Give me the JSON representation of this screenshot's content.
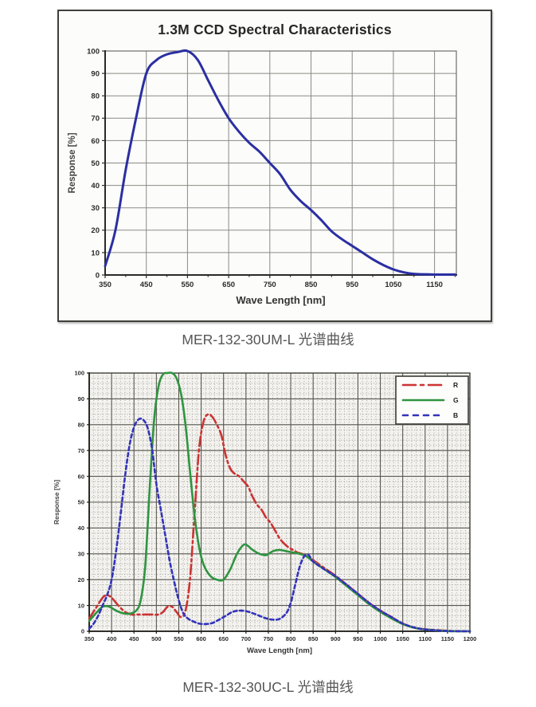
{
  "page": {
    "background": "#ffffff"
  },
  "chart_data": [
    {
      "type": "line",
      "title": "1.3M CCD Spectral Characteristics",
      "xlabel": "Wave Length [nm]",
      "ylabel": "Response [%]",
      "caption": "MER-132-30UM-L 光谱曲线",
      "xlim": [
        350,
        1203
      ],
      "ylim": [
        0,
        100
      ],
      "x_ticks": [
        350,
        450,
        550,
        650,
        750,
        850,
        950,
        1050,
        1150
      ],
      "y_ticks": [
        0,
        10,
        20,
        30,
        40,
        50,
        60,
        70,
        80,
        90,
        100
      ],
      "x_minor_tick_step": 50,
      "grid": "major",
      "legend": null,
      "series": [
        {
          "name": "CCD spectral response",
          "color": "#2b2fa2",
          "line_style": "solid",
          "x": [
            350,
            375,
            400,
            425,
            450,
            475,
            500,
            525,
            550,
            575,
            600,
            625,
            650,
            675,
            700,
            725,
            750,
            775,
            800,
            825,
            850,
            875,
            900,
            925,
            950,
            975,
            1000,
            1025,
            1050,
            1075,
            1100,
            1125,
            1150,
            1175,
            1200
          ],
          "y": [
            4,
            20,
            47,
            70,
            90,
            96,
            98.5,
            99.5,
            100,
            96,
            87,
            78,
            70,
            64,
            59,
            55,
            50,
            45,
            38,
            33,
            29,
            24.5,
            19.5,
            16,
            13,
            10,
            7,
            4.5,
            2.5,
            1.2,
            0.5,
            0.3,
            0.2,
            0.2,
            0.2
          ]
        }
      ]
    },
    {
      "type": "line",
      "title": "",
      "xlabel": "Wave Length [nm]",
      "ylabel": "Response [%]",
      "caption": "MER-132-30UC-L 光谱曲线",
      "xlim": [
        350,
        1200
      ],
      "ylim": [
        0,
        100
      ],
      "x_ticks": [
        350,
        400,
        450,
        500,
        550,
        600,
        650,
        700,
        750,
        800,
        850,
        900,
        950,
        1000,
        1050,
        1100,
        1150,
        1200
      ],
      "y_ticks": [
        0,
        10,
        20,
        30,
        40,
        50,
        60,
        70,
        80,
        90,
        100
      ],
      "x_minor_step": 10,
      "y_minor_step": 2,
      "grid": "fine-dotted",
      "legend": {
        "position": "top-right",
        "labels": [
          "R",
          "G",
          "B"
        ]
      },
      "series": [
        {
          "name": "R",
          "color": "#cc3333",
          "line_style": "dashdot",
          "x": [
            350,
            365,
            380,
            390,
            400,
            415,
            430,
            445,
            460,
            475,
            490,
            505,
            515,
            525,
            535,
            545,
            555,
            565,
            575,
            585,
            595,
            605,
            615,
            625,
            635,
            645,
            655,
            665,
            675,
            685,
            695,
            705,
            715,
            725,
            735,
            745,
            755,
            765,
            775,
            785,
            795,
            805,
            815,
            825,
            835,
            850,
            875,
            900,
            925,
            950,
            975,
            1000,
            1025,
            1050,
            1075,
            1100,
            1150,
            1200
          ],
          "y": [
            5,
            9,
            13,
            14,
            13,
            10,
            7.5,
            6.5,
            6.5,
            6.5,
            6.5,
            6.5,
            7.5,
            9.5,
            9.5,
            7.5,
            5.5,
            8,
            20,
            45,
            70,
            81,
            84,
            83,
            80,
            76,
            68,
            63,
            61,
            60,
            58,
            56,
            52,
            49,
            47,
            44,
            42,
            39,
            36,
            34,
            32.5,
            31.5,
            30.5,
            30,
            29,
            27.5,
            24.5,
            21.5,
            18,
            14.5,
            11,
            8,
            5.5,
            3,
            1.5,
            0.8,
            0.2,
            0
          ]
        },
        {
          "name": "G",
          "color": "#2f9441",
          "line_style": "solid",
          "x": [
            350,
            365,
            380,
            395,
            410,
            425,
            440,
            455,
            465,
            475,
            485,
            495,
            505,
            515,
            525,
            535,
            545,
            555,
            565,
            575,
            585,
            595,
            605,
            620,
            635,
            650,
            665,
            680,
            695,
            705,
            715,
            730,
            745,
            760,
            775,
            790,
            805,
            820,
            835,
            850,
            875,
            900,
            925,
            950,
            975,
            1000,
            1025,
            1050,
            1075,
            1100,
            1150,
            1200
          ],
          "y": [
            4,
            7,
            9.5,
            9.5,
            8,
            7,
            6.8,
            8,
            12,
            25,
            55,
            82,
            95,
            99.5,
            100,
            100,
            98,
            92,
            80,
            62,
            45,
            33,
            26,
            21.5,
            20,
            20,
            24,
            30,
            33.5,
            33,
            31.5,
            30,
            29.5,
            31,
            31.5,
            31,
            30.5,
            30,
            29,
            27,
            24,
            21,
            17.5,
            14,
            10.5,
            7.5,
            5,
            2.8,
            1.4,
            0.7,
            0.1,
            0
          ]
        },
        {
          "name": "B",
          "color": "#3333bb",
          "line_style": "dashed",
          "x": [
            350,
            360,
            370,
            380,
            390,
            400,
            410,
            420,
            430,
            440,
            450,
            460,
            470,
            480,
            490,
            500,
            510,
            520,
            530,
            540,
            550,
            560,
            570,
            580,
            595,
            610,
            625,
            640,
            655,
            670,
            685,
            700,
            715,
            730,
            745,
            760,
            775,
            790,
            800,
            810,
            820,
            830,
            840,
            850,
            875,
            900,
            925,
            950,
            975,
            1000,
            1025,
            1050,
            1075,
            1100,
            1150,
            1200
          ],
          "y": [
            1,
            3,
            6,
            10,
            14,
            20,
            31,
            45,
            60,
            72,
            79,
            82,
            82,
            79,
            71,
            57,
            47,
            37,
            27,
            19,
            12,
            7,
            5,
            4,
            3,
            2.8,
            3.2,
            4.5,
            6,
            7.5,
            8,
            7.8,
            7,
            6,
            5,
            4.5,
            4.8,
            7,
            11,
            18,
            25,
            29,
            29.5,
            27,
            24,
            21.3,
            18,
            14.5,
            11,
            8,
            5.5,
            3,
            1.5,
            0.7,
            0.1,
            0
          ]
        }
      ]
    }
  ]
}
